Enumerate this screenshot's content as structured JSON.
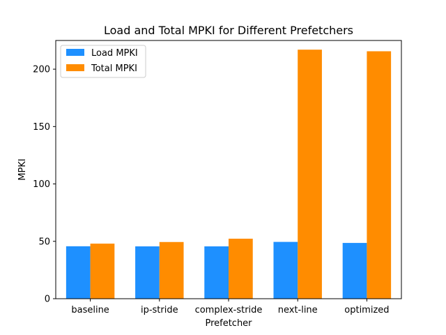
{
  "chart_data": {
    "type": "bar",
    "title": "Load and Total MPKI for Different Prefetchers",
    "xlabel": "Prefetcher",
    "ylabel": "MPKI",
    "categories": [
      "baseline",
      "ip-stride",
      "complex-stride",
      "next-line",
      "optimized"
    ],
    "series": [
      {
        "name": "Load MPKI",
        "color": "#1e90ff",
        "values": [
          45.7,
          45.6,
          45.6,
          49.5,
          48.6
        ]
      },
      {
        "name": "Total MPKI",
        "color": "#ff8c00",
        "values": [
          48.0,
          49.4,
          52.3,
          217.0,
          215.6
        ]
      }
    ],
    "ylim": [
      0,
      225
    ],
    "yticks": [
      0,
      50,
      100,
      150,
      200
    ],
    "grid": false,
    "legend": "top-left"
  }
}
